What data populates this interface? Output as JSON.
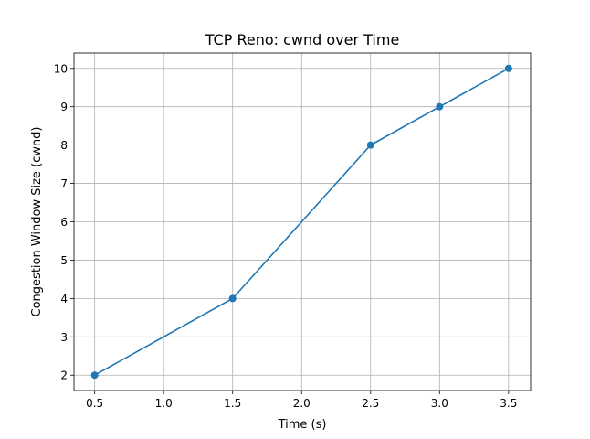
{
  "chart_data": {
    "type": "line",
    "title": "TCP Reno: cwnd over Time",
    "xlabel": "Time (s)",
    "ylabel": "Congestion Window Size (cwnd)",
    "xlim": [
      0.35,
      3.66
    ],
    "ylim": [
      1.6,
      10.4
    ],
    "xticks": [
      0.5,
      1.0,
      1.5,
      2.0,
      2.5,
      3.0,
      3.5
    ],
    "xtick_labels": [
      "0.5",
      "1.0",
      "1.5",
      "2.0",
      "2.5",
      "3.0",
      "3.5"
    ],
    "yticks": [
      2,
      3,
      4,
      5,
      6,
      7,
      8,
      9,
      10
    ],
    "ytick_labels": [
      "2",
      "3",
      "4",
      "5",
      "6",
      "7",
      "8",
      "9",
      "10"
    ],
    "grid": true,
    "series": [
      {
        "color": "#1f77b4",
        "marker": "circle",
        "points": [
          {
            "x": 0.5,
            "y": 2
          },
          {
            "x": 1.5,
            "y": 4
          },
          {
            "x": 2.5,
            "y": 8
          },
          {
            "x": 3.0,
            "y": 9
          },
          {
            "x": 3.5,
            "y": 10
          }
        ]
      }
    ]
  }
}
